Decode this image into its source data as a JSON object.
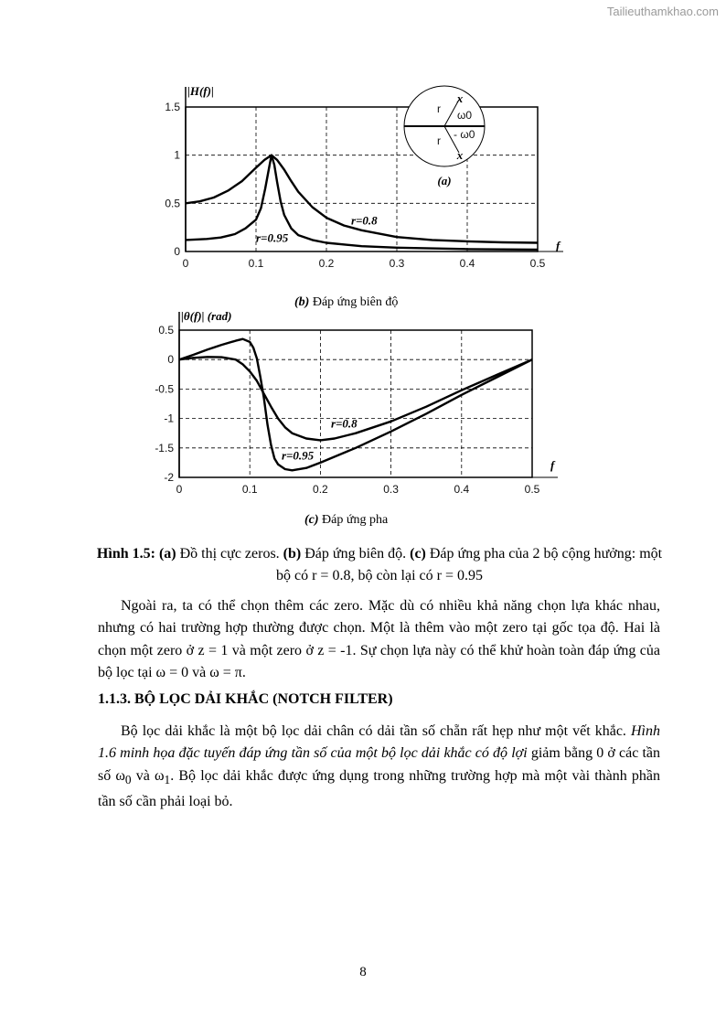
{
  "watermark": "Tailieuthamkhao.com",
  "chart_data": [
    {
      "type": "line",
      "ylabel": "|H(f)|",
      "xlabel": "f",
      "caption_tag": "(b)",
      "caption": "Đáp ứng biên độ",
      "xlim": [
        0,
        0.5
      ],
      "ylim": [
        0,
        1.5
      ],
      "xticks": [
        "0",
        "0.1",
        "0.2",
        "0.3",
        "0.4",
        "0.5"
      ],
      "yticks": [
        "0",
        "0.5",
        "1",
        "1.5"
      ],
      "grid": true,
      "series": [
        {
          "name": "r=0.8",
          "points": [
            [
              0,
              0.5
            ],
            [
              0.02,
              0.52
            ],
            [
              0.04,
              0.56
            ],
            [
              0.06,
              0.63
            ],
            [
              0.08,
              0.73
            ],
            [
              0.1,
              0.87
            ],
            [
              0.112,
              0.95
            ],
            [
              0.122,
              1.0
            ],
            [
              0.13,
              0.95
            ],
            [
              0.14,
              0.85
            ],
            [
              0.15,
              0.73
            ],
            [
              0.16,
              0.62
            ],
            [
              0.18,
              0.46
            ],
            [
              0.2,
              0.35
            ],
            [
              0.225,
              0.27
            ],
            [
              0.25,
              0.22
            ],
            [
              0.3,
              0.15
            ],
            [
              0.35,
              0.12
            ],
            [
              0.4,
              0.105
            ],
            [
              0.45,
              0.095
            ],
            [
              0.5,
              0.09
            ]
          ]
        },
        {
          "name": "r=0.95",
          "points": [
            [
              0,
              0.12
            ],
            [
              0.03,
              0.13
            ],
            [
              0.05,
              0.145
            ],
            [
              0.07,
              0.18
            ],
            [
              0.085,
              0.24
            ],
            [
              0.1,
              0.33
            ],
            [
              0.107,
              0.45
            ],
            [
              0.113,
              0.65
            ],
            [
              0.118,
              0.85
            ],
            [
              0.122,
              1.0
            ],
            [
              0.126,
              0.9
            ],
            [
              0.13,
              0.72
            ],
            [
              0.135,
              0.52
            ],
            [
              0.14,
              0.38
            ],
            [
              0.15,
              0.24
            ],
            [
              0.16,
              0.17
            ],
            [
              0.18,
              0.12
            ],
            [
              0.2,
              0.09
            ],
            [
              0.25,
              0.055
            ],
            [
              0.3,
              0.04
            ],
            [
              0.4,
              0.025
            ],
            [
              0.5,
              0.02
            ]
          ]
        }
      ],
      "inset": {
        "title": "(a)",
        "radius_label": "r",
        "angle_label": "ω0",
        "neg_angle_label": "- ω0",
        "pole_marker": "x"
      }
    },
    {
      "type": "line",
      "ylabel": "|θ(f)| (rad)",
      "xlabel": "f",
      "caption_tag": "(c)",
      "caption": "Đáp ứng pha",
      "xlim": [
        0,
        0.5
      ],
      "ylim": [
        -2,
        0.5
      ],
      "xticks": [
        "0",
        "0.1",
        "0.2",
        "0.3",
        "0.4",
        "0.5"
      ],
      "yticks": [
        "0.5",
        "0",
        "-0.5",
        "-1",
        "-1.5",
        "-2"
      ],
      "grid": true,
      "series": [
        {
          "name": "r=0.8",
          "points": [
            [
              0,
              0
            ],
            [
              0.02,
              0.03
            ],
            [
              0.04,
              0.045
            ],
            [
              0.06,
              0.04
            ],
            [
              0.08,
              0
            ],
            [
              0.09,
              -0.08
            ],
            [
              0.1,
              -0.2
            ],
            [
              0.11,
              -0.36
            ],
            [
              0.12,
              -0.58
            ],
            [
              0.13,
              -0.8
            ],
            [
              0.14,
              -1.0
            ],
            [
              0.15,
              -1.15
            ],
            [
              0.16,
              -1.25
            ],
            [
              0.18,
              -1.34
            ],
            [
              0.2,
              -1.37
            ],
            [
              0.22,
              -1.34
            ],
            [
              0.25,
              -1.25
            ],
            [
              0.3,
              -1.05
            ],
            [
              0.35,
              -0.8
            ],
            [
              0.4,
              -0.52
            ],
            [
              0.45,
              -0.26
            ],
            [
              0.5,
              0
            ]
          ]
        },
        {
          "name": "r=0.95",
          "points": [
            [
              0,
              0
            ],
            [
              0.02,
              0.08
            ],
            [
              0.04,
              0.17
            ],
            [
              0.06,
              0.25
            ],
            [
              0.08,
              0.32
            ],
            [
              0.09,
              0.35
            ],
            [
              0.1,
              0.3
            ],
            [
              0.105,
              0.2
            ],
            [
              0.11,
              0.02
            ],
            [
              0.115,
              -0.3
            ],
            [
              0.12,
              -0.65
            ],
            [
              0.125,
              -1.1
            ],
            [
              0.13,
              -1.45
            ],
            [
              0.135,
              -1.68
            ],
            [
              0.14,
              -1.78
            ],
            [
              0.15,
              -1.86
            ],
            [
              0.16,
              -1.88
            ],
            [
              0.18,
              -1.84
            ],
            [
              0.2,
              -1.75
            ],
            [
              0.25,
              -1.5
            ],
            [
              0.3,
              -1.22
            ],
            [
              0.35,
              -0.92
            ],
            [
              0.4,
              -0.6
            ],
            [
              0.45,
              -0.3
            ],
            [
              0.5,
              0
            ]
          ]
        }
      ]
    }
  ],
  "figure_caption": {
    "label": "Hình 1.5:",
    "a": "(a)",
    "a_text": " Đồ thị cực zeros. ",
    "b": "(b)",
    "b_text": " Đáp ứng biên độ. ",
    "c": "(c)",
    "c_text": " Đáp ứng pha của 2 bộ cộng hưởng: một bộ có r = 0.8, bộ còn lại có r = 0.95"
  },
  "paragraph1": "Ngoài ra, ta có thể chọn thêm các zero. Mặc dù có nhiều khả năng chọn lựa khác nhau, nhưng có hai trường hợp thường được chọn. Một là thêm vào một zero tại gốc tọa độ. Hai là chọn một zero ở z = 1 và một zero ở z = -1. Sự chọn lựa này có thể khử hoàn toàn đáp ứng của bộ lọc tại ω = 0 và ω = π.",
  "heading": "1.1.3. BỘ LỌC DẢI KHẮC (NOTCH FILTER)",
  "paragraph2": {
    "start": "Bộ lọc dải khắc là một bộ lọc dải chân có dải tần số chẵn rất hẹp như một vết khắc. ",
    "italic": "Hình 1.6 minh họa đặc tuyến đáp ứng tần số của một bộ lọc dải khắc có độ lợi",
    "mid": " giảm bằng 0 ở các tần số ω",
    "sub0": "0",
    "mid2": " và ω",
    "sub1": "1",
    "end": ". Bộ lọc dải khắc được ứng dụng trong những trường hợp mà một vài thành phần tần số cần phải loại bỏ."
  },
  "page_number": "8"
}
